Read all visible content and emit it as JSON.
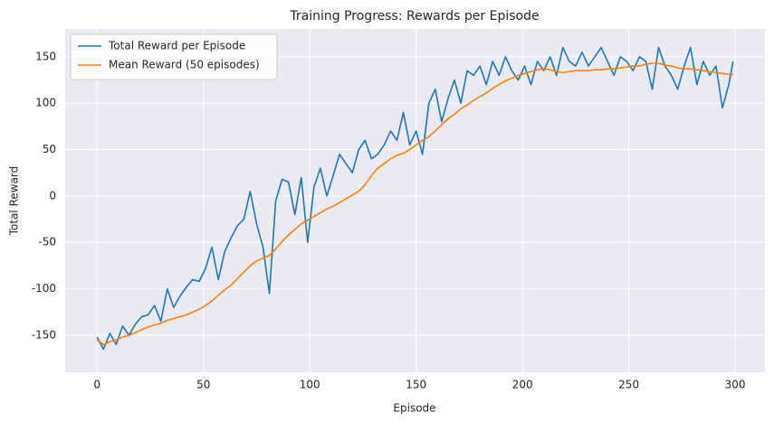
{
  "chart_data": {
    "type": "line",
    "title": "Training Progress: Rewards per Episode",
    "x_label": "Episode",
    "y_label": "Total Reward",
    "xlim": [
      -15,
      314
    ],
    "ylim": [
      -190,
      180
    ],
    "xticks": [
      0,
      50,
      100,
      150,
      200,
      250,
      300
    ],
    "yticks": [
      -150,
      -100,
      -50,
      0,
      50,
      100,
      150
    ],
    "grid": true,
    "legend": "upper left",
    "x": [
      0,
      3,
      6,
      9,
      12,
      15,
      18,
      21,
      24,
      27,
      30,
      33,
      36,
      39,
      42,
      45,
      48,
      51,
      54,
      57,
      60,
      63,
      66,
      69,
      72,
      75,
      78,
      81,
      84,
      87,
      90,
      93,
      96,
      99,
      102,
      105,
      108,
      111,
      114,
      117,
      120,
      123,
      126,
      129,
      132,
      135,
      138,
      141,
      144,
      147,
      150,
      153,
      156,
      159,
      162,
      165,
      168,
      171,
      174,
      177,
      180,
      183,
      186,
      189,
      192,
      195,
      198,
      201,
      204,
      207,
      210,
      213,
      216,
      219,
      222,
      225,
      228,
      231,
      234,
      237,
      240,
      243,
      246,
      249,
      252,
      255,
      258,
      261,
      264,
      267,
      270,
      273,
      276,
      279,
      282,
      285,
      288,
      291,
      294,
      297,
      299
    ],
    "series": [
      {
        "name": "Total Reward per Episode",
        "color": "#1f77b4",
        "values": [
          -152,
          -165,
          -148,
          -160,
          -140,
          -150,
          -138,
          -130,
          -128,
          -118,
          -135,
          -100,
          -120,
          -108,
          -98,
          -90,
          -92,
          -78,
          -55,
          -90,
          -60,
          -45,
          -32,
          -25,
          5,
          -30,
          -55,
          -105,
          -5,
          18,
          15,
          -20,
          20,
          -50,
          10,
          30,
          0,
          22,
          45,
          35,
          25,
          50,
          60,
          40,
          45,
          55,
          70,
          60,
          90,
          55,
          70,
          45,
          100,
          115,
          80,
          105,
          125,
          100,
          135,
          130,
          140,
          120,
          145,
          130,
          150,
          135,
          125,
          140,
          120,
          145,
          135,
          150,
          130,
          160,
          145,
          140,
          155,
          140,
          150,
          160,
          145,
          130,
          150,
          145,
          135,
          150,
          145,
          115,
          160,
          140,
          130,
          115,
          140,
          160,
          120,
          145,
          130,
          140,
          95,
          120,
          145
        ]
      },
      {
        "name": "Mean Reward (50 episodes)",
        "color": "#ff7f0e",
        "values": [
          -155,
          -160,
          -157,
          -155,
          -152,
          -150,
          -147,
          -144,
          -141,
          -139,
          -137,
          -134,
          -132,
          -130,
          -128,
          -125,
          -122,
          -118,
          -113,
          -107,
          -101,
          -96,
          -89,
          -82,
          -75,
          -70,
          -67,
          -64,
          -57,
          -49,
          -42,
          -36,
          -30,
          -26,
          -22,
          -18,
          -14,
          -11,
          -7,
          -3,
          1,
          5,
          12,
          22,
          30,
          35,
          40,
          44,
          46,
          50,
          55,
          60,
          64,
          70,
          77,
          83,
          88,
          94,
          98,
          103,
          107,
          111,
          116,
          120,
          124,
          127,
          130,
          132,
          134,
          136,
          137,
          136,
          134,
          133,
          134,
          135,
          135,
          135,
          136,
          136,
          137,
          137,
          138,
          139,
          140,
          140,
          142,
          143,
          143,
          141,
          140,
          138,
          137,
          137,
          136,
          135,
          134,
          133,
          132,
          131,
          131
        ]
      }
    ]
  }
}
